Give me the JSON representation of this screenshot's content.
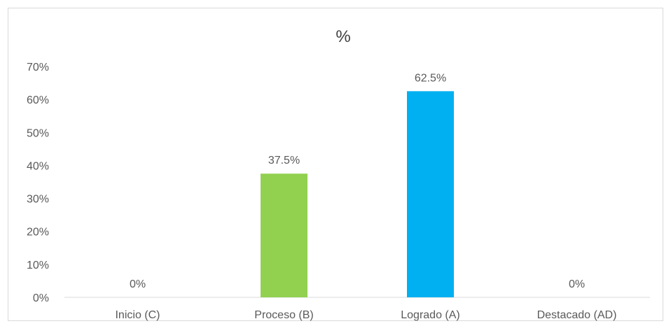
{
  "chart_data": {
    "type": "bar",
    "title": "%",
    "categories": [
      "Inicio (C)",
      "Proceso (B)",
      "Logrado (A)",
      "Destacado (AD)"
    ],
    "values": [
      0,
      37.5,
      62.5,
      0
    ],
    "data_labels": [
      "0%",
      "37.5%",
      "62.5%",
      "0%"
    ],
    "bar_colors": [
      "#92d050",
      "#92d050",
      "#00b0f0",
      "#00b0f0"
    ],
    "y_ticks": [
      0,
      10,
      20,
      30,
      40,
      50,
      60,
      70
    ],
    "y_tick_labels": [
      "0%",
      "10%",
      "20%",
      "30%",
      "40%",
      "50%",
      "60%",
      "70%"
    ],
    "ylim": [
      0,
      70
    ],
    "xlabel": "",
    "ylabel": "",
    "grid": false,
    "legend": "none"
  }
}
